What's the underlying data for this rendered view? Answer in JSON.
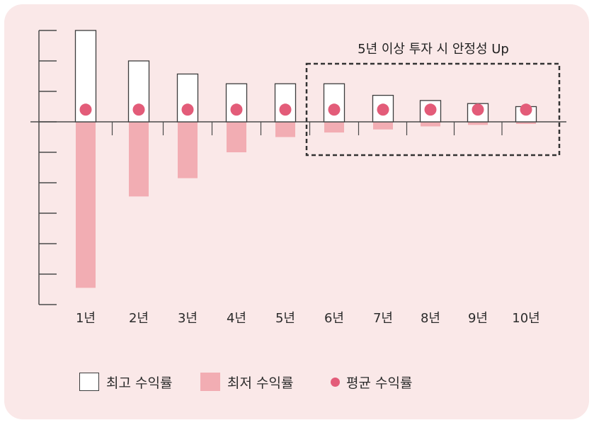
{
  "chart_data": {
    "type": "bar",
    "title": "",
    "xlabel": "",
    "ylabel": "",
    "categories": [
      "1년",
      "2년",
      "3년",
      "4년",
      "5년",
      "6년",
      "7년",
      "8년",
      "9년",
      "10년"
    ],
    "series": [
      {
        "name": "최고 수익률",
        "kind": "bar",
        "values": [
          30,
          20,
          15.7,
          12.5,
          12.5,
          12.5,
          8.7,
          7,
          6,
          5
        ]
      },
      {
        "name": "최저 수익률",
        "kind": "bar",
        "values": [
          -54.5,
          -24.5,
          -18.5,
          -10,
          -5,
          -3.5,
          -2.5,
          -1.5,
          -1,
          -0.7
        ]
      },
      {
        "name": "평균 수익률",
        "kind": "point",
        "values": [
          4,
          4,
          4,
          4,
          4,
          4,
          4,
          4,
          4,
          4
        ]
      }
    ],
    "ylim": [
      -60,
      30
    ],
    "grid": false,
    "legend": "bottom",
    "annotation": {
      "text": "5년 이상 투자 시 안정성 Up",
      "from_category": "6년",
      "to_category": "10년"
    },
    "colors": {
      "max": "#ffffff",
      "max_border": "#3c3c3c",
      "min": "#f2adb3",
      "avg": "#e35c79",
      "axis": "#4a4a4a",
      "panel": "#fae8e8"
    }
  },
  "legend": {
    "max_label": "최고 수익률",
    "min_label": "최저 수익률",
    "avg_label": "평균 수익률"
  }
}
